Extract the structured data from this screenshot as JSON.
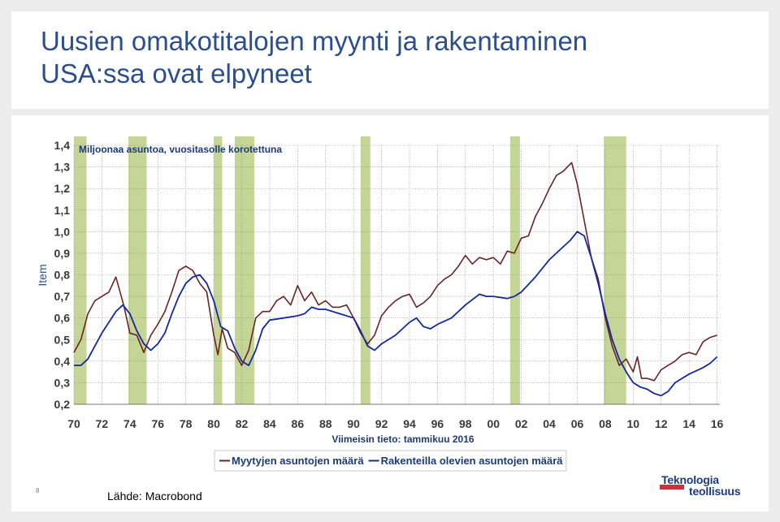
{
  "title_lines": [
    "Uusien omakotitalojen myynti ja rakentaminen",
    "USA:ssa ovat elpyneet"
  ],
  "source": "Lähde: Macrobond",
  "page_number": "8",
  "logo": {
    "line1": "Teknologia",
    "line2": "teollisuus"
  },
  "chart_data": {
    "type": "line",
    "ylabel": "Item",
    "unit_label": "Miljoonaa asuntoa, vuositasolle korotettuna",
    "footnote": "Viimeisin tieto: tammikuu 2016",
    "ylim": [
      0.2,
      1.4
    ],
    "xlim": [
      1970,
      2016.2
    ],
    "yticks": [
      "0,2",
      "0,3",
      "0,4",
      "0,5",
      "0,6",
      "0,7",
      "0,8",
      "0,9",
      "1,0",
      "1,1",
      "1,2",
      "1,3",
      "1,4"
    ],
    "xticks": [
      "70",
      "72",
      "74",
      "76",
      "78",
      "80",
      "82",
      "84",
      "86",
      "88",
      "90",
      "92",
      "94",
      "96",
      "98",
      "00",
      "02",
      "04",
      "06",
      "08",
      "10",
      "12",
      "14",
      "16"
    ],
    "recessions": [
      [
        1970.0,
        1970.9
      ],
      [
        1973.9,
        1975.2
      ],
      [
        1980.0,
        1980.6
      ],
      [
        1981.5,
        1982.9
      ],
      [
        1990.5,
        1991.2
      ],
      [
        2001.2,
        2001.9
      ],
      [
        2007.9,
        2009.5
      ]
    ],
    "recession_color": "#c5d595",
    "grid": true,
    "legend_position": "bottom",
    "series": [
      {
        "name": "Myytyjen asuntojen määrä",
        "color": "#6a2424",
        "x": [
          1970.0,
          1970.5,
          1971.0,
          1971.5,
          1972.0,
          1972.5,
          1973.0,
          1973.3,
          1973.6,
          1974.0,
          1974.5,
          1975.0,
          1975.5,
          1976.0,
          1976.5,
          1977.0,
          1977.5,
          1978.0,
          1978.5,
          1979.0,
          1979.5,
          1980.0,
          1980.3,
          1980.6,
          1981.0,
          1981.5,
          1982.0,
          1982.5,
          1983.0,
          1983.5,
          1984.0,
          1984.5,
          1985.0,
          1985.5,
          1986.0,
          1986.5,
          1987.0,
          1987.5,
          1988.0,
          1988.5,
          1989.0,
          1989.5,
          1990.0,
          1990.5,
          1991.0,
          1991.5,
          1992.0,
          1992.5,
          1993.0,
          1993.5,
          1994.0,
          1994.5,
          1995.0,
          1995.5,
          1996.0,
          1996.5,
          1997.0,
          1997.5,
          1998.0,
          1998.5,
          1999.0,
          1999.5,
          2000.0,
          2000.5,
          2001.0,
          2001.5,
          2002.0,
          2002.5,
          2003.0,
          2003.5,
          2004.0,
          2004.5,
          2005.0,
          2005.3,
          2005.6,
          2006.0,
          2006.5,
          2007.0,
          2007.5,
          2008.0,
          2008.5,
          2009.0,
          2009.5,
          2010.0,
          2010.3,
          2010.6,
          2011.0,
          2011.5,
          2012.0,
          2012.5,
          2013.0,
          2013.5,
          2014.0,
          2014.5,
          2015.0,
          2015.5,
          2016.0
        ],
        "values": [
          0.44,
          0.5,
          0.62,
          0.68,
          0.7,
          0.72,
          0.79,
          0.72,
          0.65,
          0.53,
          0.52,
          0.44,
          0.52,
          0.57,
          0.63,
          0.72,
          0.82,
          0.84,
          0.82,
          0.76,
          0.72,
          0.52,
          0.43,
          0.55,
          0.46,
          0.44,
          0.38,
          0.45,
          0.6,
          0.63,
          0.63,
          0.68,
          0.7,
          0.66,
          0.75,
          0.68,
          0.72,
          0.66,
          0.68,
          0.65,
          0.65,
          0.66,
          0.6,
          0.53,
          0.48,
          0.52,
          0.61,
          0.65,
          0.68,
          0.7,
          0.71,
          0.65,
          0.67,
          0.7,
          0.75,
          0.78,
          0.8,
          0.84,
          0.89,
          0.85,
          0.88,
          0.87,
          0.88,
          0.85,
          0.91,
          0.9,
          0.97,
          0.98,
          1.07,
          1.13,
          1.2,
          1.26,
          1.28,
          1.3,
          1.32,
          1.22,
          1.05,
          0.88,
          0.78,
          0.6,
          0.47,
          0.38,
          0.41,
          0.35,
          0.42,
          0.32,
          0.32,
          0.31,
          0.36,
          0.38,
          0.4,
          0.43,
          0.44,
          0.43,
          0.49,
          0.51,
          0.52
        ]
      },
      {
        "name": "Rakenteilla olevien asuntojen määrä",
        "color": "#1428a0",
        "x": [
          1970.0,
          1970.5,
          1971.0,
          1971.5,
          1972.0,
          1972.5,
          1973.0,
          1973.5,
          1974.0,
          1974.5,
          1975.0,
          1975.5,
          1976.0,
          1976.5,
          1977.0,
          1977.5,
          1978.0,
          1978.5,
          1979.0,
          1979.5,
          1980.0,
          1980.5,
          1981.0,
          1981.5,
          1982.0,
          1982.5,
          1983.0,
          1983.5,
          1984.0,
          1985.0,
          1986.0,
          1986.5,
          1987.0,
          1987.5,
          1988.0,
          1989.0,
          1990.0,
          1990.5,
          1991.0,
          1991.5,
          1992.0,
          1993.0,
          1994.0,
          1994.5,
          1995.0,
          1995.5,
          1996.0,
          1997.0,
          1998.0,
          1999.0,
          1999.5,
          2000.0,
          2001.0,
          2001.5,
          2002.0,
          2003.0,
          2004.0,
          2005.0,
          2005.5,
          2006.0,
          2006.5,
          2007.0,
          2007.5,
          2008.0,
          2008.5,
          2009.0,
          2009.5,
          2010.0,
          2010.5,
          2011.0,
          2011.5,
          2012.0,
          2012.5,
          2013.0,
          2014.0,
          2015.0,
          2015.5,
          2016.0
        ],
        "values": [
          0.38,
          0.38,
          0.41,
          0.47,
          0.53,
          0.58,
          0.63,
          0.66,
          0.62,
          0.54,
          0.48,
          0.45,
          0.48,
          0.53,
          0.62,
          0.7,
          0.76,
          0.79,
          0.8,
          0.76,
          0.68,
          0.56,
          0.54,
          0.46,
          0.4,
          0.38,
          0.45,
          0.55,
          0.59,
          0.6,
          0.61,
          0.62,
          0.65,
          0.64,
          0.64,
          0.62,
          0.6,
          0.54,
          0.47,
          0.45,
          0.48,
          0.52,
          0.58,
          0.6,
          0.56,
          0.55,
          0.57,
          0.6,
          0.66,
          0.71,
          0.7,
          0.7,
          0.69,
          0.7,
          0.72,
          0.79,
          0.87,
          0.93,
          0.96,
          1.0,
          0.98,
          0.88,
          0.76,
          0.62,
          0.5,
          0.41,
          0.35,
          0.3,
          0.28,
          0.27,
          0.25,
          0.24,
          0.26,
          0.3,
          0.34,
          0.37,
          0.39,
          0.42
        ]
      }
    ]
  }
}
